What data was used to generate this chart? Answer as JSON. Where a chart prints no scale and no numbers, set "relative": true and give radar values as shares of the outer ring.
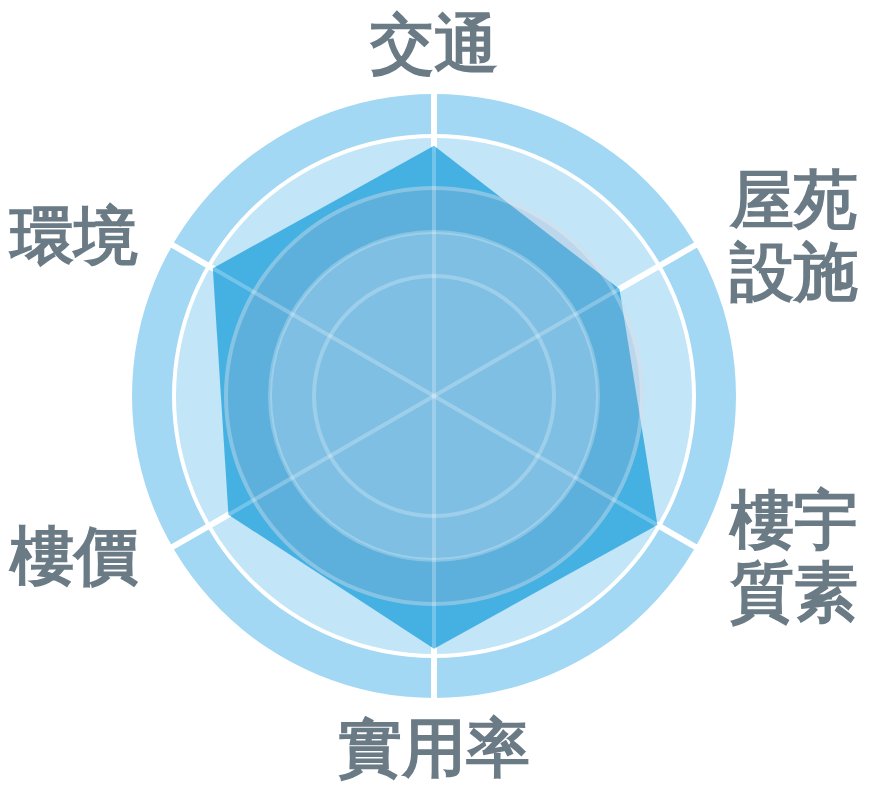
{
  "chart_data": {
    "type": "radar",
    "relative": true,
    "grid": true,
    "categories": [
      "交通",
      "屋苑設施",
      "樓宇質素",
      "實用率",
      "樓價",
      "環境"
    ],
    "series": [
      {
        "color": "#45b1e3",
        "values": [
          0.97,
          0.83,
          1.0,
          0.98,
          0.92,
          0.99
        ]
      }
    ]
  }
}
